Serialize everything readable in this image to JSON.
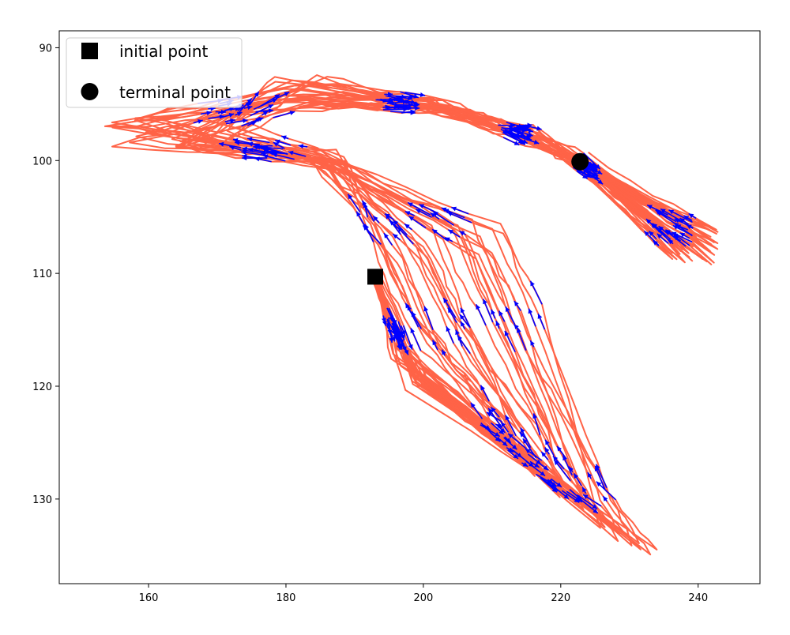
{
  "chart_data": {
    "type": "line",
    "title": "",
    "xlabel": "",
    "ylabel": "",
    "xlim": [
      147,
      249
    ],
    "ylim": [
      137.5,
      88.5
    ],
    "y_inverted": true,
    "grid": false,
    "legend_position": "top-left",
    "x_ticks": [
      "160",
      "180",
      "200",
      "220",
      "240"
    ],
    "x_tick_values": [
      160,
      180,
      200,
      220,
      240
    ],
    "y_ticks": [
      "90",
      "100",
      "110",
      "120",
      "130"
    ],
    "y_tick_values": [
      90,
      100,
      110,
      120,
      130
    ],
    "legend": [
      {
        "label": "initial point",
        "marker": "square"
      },
      {
        "label": "terminal point",
        "marker": "circle"
      }
    ],
    "initial_point": {
      "x": 193.0,
      "y": 110.3
    },
    "terminal_point": {
      "x": 222.8,
      "y": 100.1
    },
    "trajectory_color": "#ff6347",
    "arrow_color": "#0000ff",
    "marker_color": "#000000",
    "trajectory_count": 30
  }
}
